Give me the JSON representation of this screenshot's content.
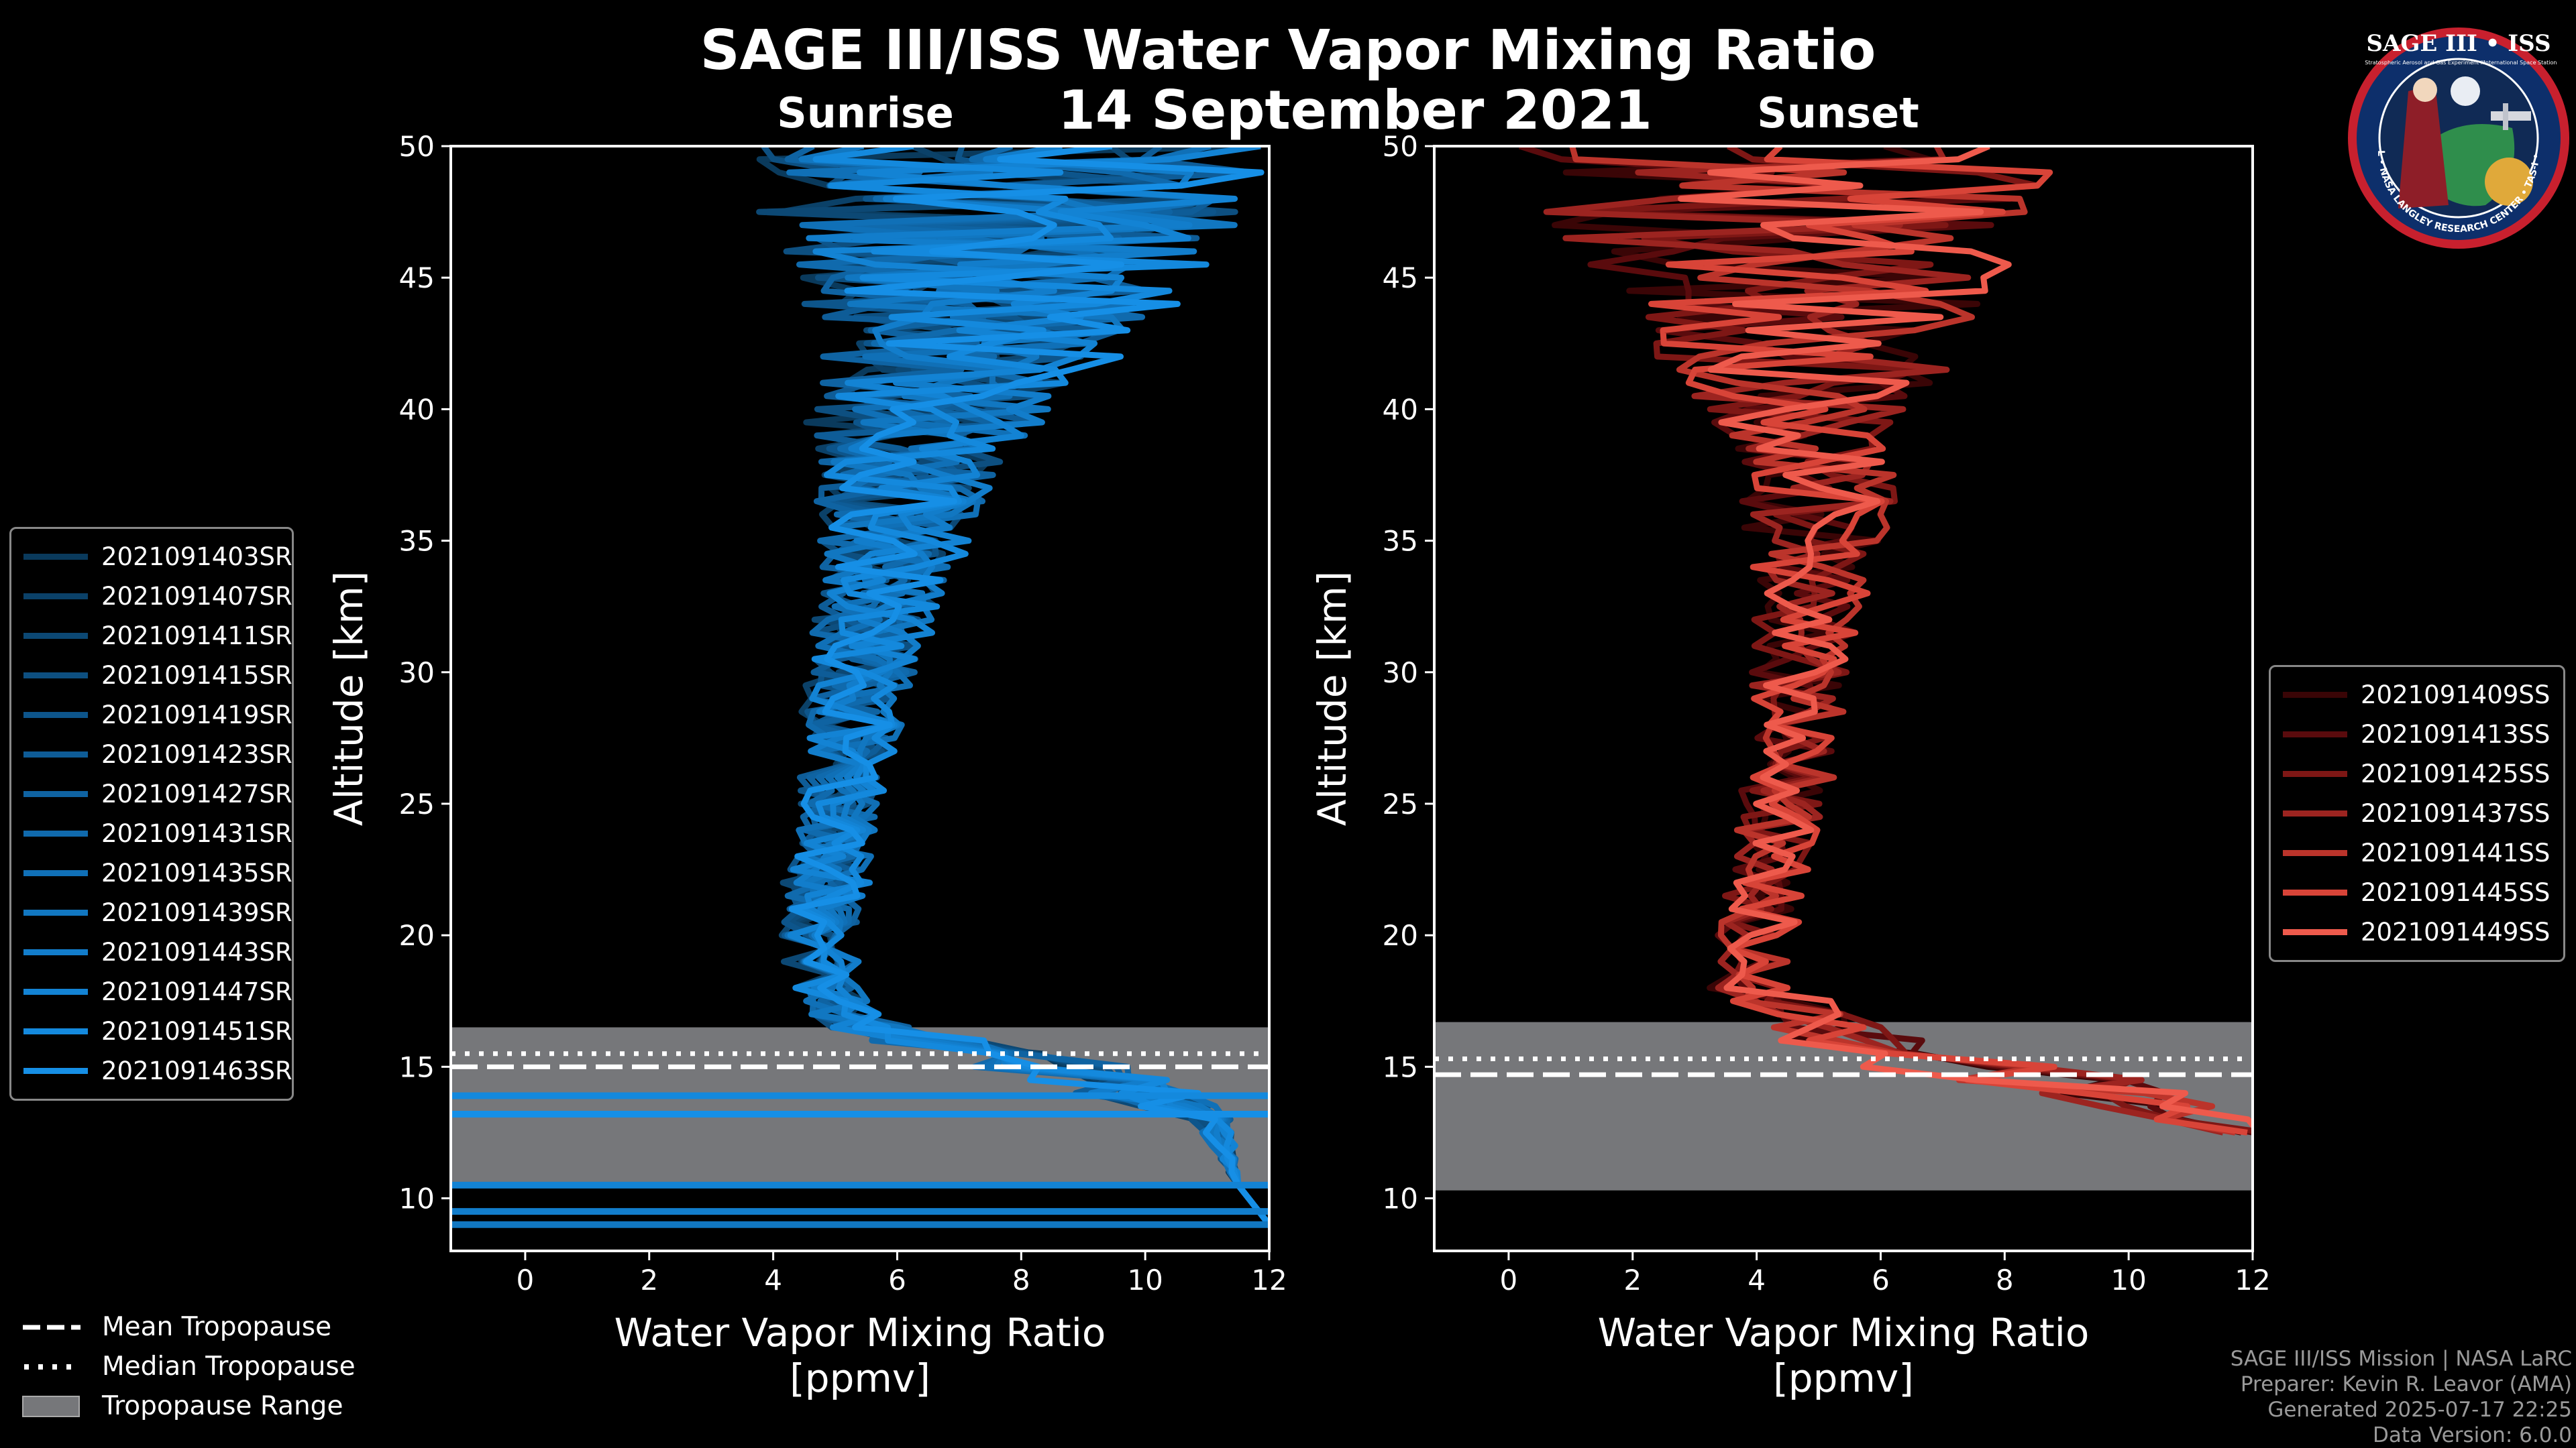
{
  "title": "SAGE III/ISS Water Vapor Mixing Ratio",
  "date": "14 September 2021",
  "chart_data": [
    {
      "type": "line",
      "panel": "Sunrise",
      "title": "Sunrise",
      "xlabel": "Water Vapor Mixing Ratio",
      "xunit": "[ppmv]",
      "ylabel": "Altitude [km]",
      "xlim": [
        -1.2,
        12
      ],
      "ylim": [
        8,
        50
      ],
      "xticks": [
        "0",
        "2",
        "4",
        "6",
        "8",
        "10",
        "12"
      ],
      "yticks": [
        "10",
        "15",
        "20",
        "25",
        "30",
        "35",
        "40",
        "45",
        "50"
      ],
      "tropopause": {
        "mean_km": 15.0,
        "median_km": 15.5,
        "range_km": [
          10.5,
          16.5
        ]
      },
      "profile_shape": {
        "altitude_km": [
          9,
          10.5,
          13,
          14,
          15,
          15.7,
          16.3,
          17,
          18,
          20,
          22,
          25,
          28,
          30,
          32,
          35,
          38,
          40,
          42,
          45,
          48,
          50
        ],
        "center_ppmv": [
          12,
          11.5,
          11,
          9.6,
          8.2,
          6.8,
          5.6,
          5.0,
          4.7,
          4.6,
          4.7,
          4.9,
          5.1,
          5.2,
          5.4,
          5.6,
          5.9,
          6.1,
          6.4,
          6.7,
          7.0,
          7.0
        ],
        "spread_ppmv": [
          0,
          0,
          0.3,
          0.9,
          1.2,
          1.0,
          0.7,
          0.5,
          0.5,
          0.55,
          0.6,
          0.6,
          0.7,
          0.8,
          0.9,
          1.1,
          1.4,
          1.7,
          2.2,
          2.9,
          3.8,
          4.0
        ]
      },
      "series": [
        {
          "name": "2021091403SR",
          "color": "#0a3a5c"
        },
        {
          "name": "2021091407SR",
          "color": "#0b4168"
        },
        {
          "name": "2021091411SR",
          "color": "#0c4874"
        },
        {
          "name": "2021091415SR",
          "color": "#0d4f80"
        },
        {
          "name": "2021091419SR",
          "color": "#0d558b"
        },
        {
          "name": "2021091423SR",
          "color": "#0e5c97"
        },
        {
          "name": "2021091427SR",
          "color": "#0f63a2"
        },
        {
          "name": "2021091431SR",
          "color": "#106aad"
        },
        {
          "name": "2021091435SR",
          "color": "#1070b7"
        },
        {
          "name": "2021091439SR",
          "color": "#1177c1"
        },
        {
          "name": "2021091443SR",
          "color": "#127dcb"
        },
        {
          "name": "2021091447SR",
          "color": "#1383d4"
        },
        {
          "name": "2021091451SR",
          "color": "#1489dd"
        },
        {
          "name": "2021091463SR",
          "color": "#168fe6"
        }
      ]
    },
    {
      "type": "line",
      "panel": "Sunset",
      "title": "Sunset",
      "xlabel": "Water Vapor Mixing Ratio",
      "xunit": "[ppmv]",
      "ylabel": "Altitude [km]",
      "xlim": [
        -1.2,
        12
      ],
      "ylim": [
        8,
        50
      ],
      "xticks": [
        "0",
        "2",
        "4",
        "6",
        "8",
        "10",
        "12"
      ],
      "yticks": [
        "10",
        "15",
        "20",
        "25",
        "30",
        "35",
        "40",
        "45",
        "50"
      ],
      "tropopause": {
        "mean_km": 14.7,
        "median_km": 15.3,
        "range_km": [
          10.3,
          16.7
        ]
      },
      "profile_shape": {
        "altitude_km": [
          12.5,
          13.5,
          14.5,
          15,
          15.5,
          16,
          17,
          18,
          20,
          22,
          25,
          28,
          30,
          32,
          35,
          38,
          40,
          42,
          45,
          48,
          50
        ],
        "center_ppmv": [
          12,
          11,
          9.5,
          8,
          7,
          6.2,
          5.0,
          4.4,
          4.3,
          4.5,
          4.8,
          5.0,
          5.1,
          5.2,
          5.5,
          5.7,
          5.9,
          6.0,
          6.3,
          6.6,
          6.8
        ],
        "spread_ppmv": [
          0.4,
          1.0,
          1.4,
          1.5,
          1.4,
          1.2,
          0.9,
          0.7,
          0.6,
          0.6,
          0.65,
          0.7,
          0.75,
          0.8,
          1.0,
          1.3,
          1.7,
          2.2,
          3.0,
          3.8,
          4.2
        ]
      },
      "series": [
        {
          "name": "2021091409SS",
          "color": "#3a0506"
        },
        {
          "name": "2021091413SS",
          "color": "#5a0b0d"
        },
        {
          "name": "2021091425SS",
          "color": "#7e1715"
        },
        {
          "name": "2021091437SS",
          "color": "#9c2420"
        },
        {
          "name": "2021091441SS",
          "color": "#bb342b"
        },
        {
          "name": "2021091445SS",
          "color": "#d84438"
        },
        {
          "name": "2021091449SS",
          "color": "#ee5a4c"
        }
      ]
    }
  ],
  "tropopause_legend": {
    "mean": "Mean Tropopause",
    "median": "Median Tropopause",
    "range": "Tropopause Range"
  },
  "credits": {
    "line1": "SAGE III/ISS Mission | NASA LaRC",
    "line2": "Preparer: Kevin R. Leavor (AMA)",
    "line3": "Generated 2025-07-17 22:25",
    "line4": "Data Version: 6.0.0"
  },
  "logo": {
    "title": "SAGE III • ISS",
    "subtitle1": "Stratospheric Aerosol and Gas Experiment III",
    "subtitle2": "International Space Station",
    "ring_text": "BALL • NASA LANGLEY RESEARCH CENTER • TAS-I • ESA"
  }
}
